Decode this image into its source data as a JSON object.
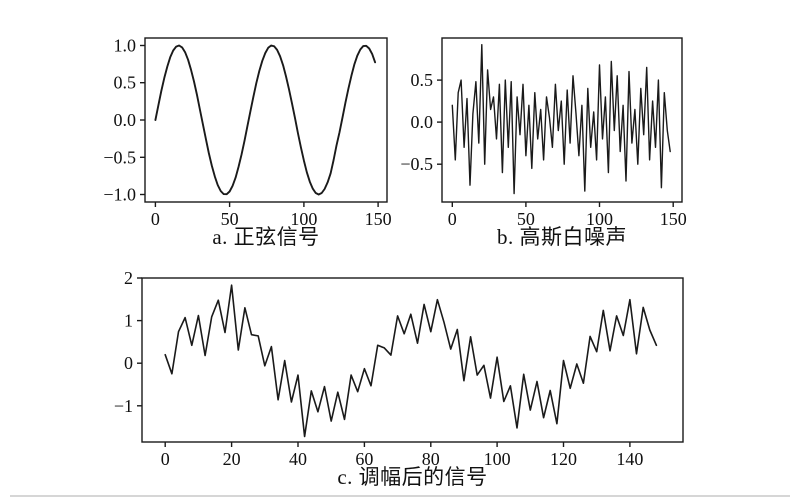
{
  "figure": {
    "background": "#ffffff",
    "line_color": "#1a1a1a",
    "axis_color": "#1a1a1a",
    "label_color": "#111111",
    "divider_color": "#d6d6d6"
  },
  "chart_data": [
    {
      "type": "line",
      "title": "a. 正弦信号",
      "xlabel": "",
      "ylabel": "",
      "x0": 0,
      "dx": 2,
      "xlim": [
        -7,
        156
      ],
      "ylim": [
        -1.1,
        1.1
      ],
      "grid": false,
      "legend": "none",
      "xticks": {
        "values": [
          0,
          50,
          100,
          150
        ],
        "labels": [
          "0",
          "50",
          "100",
          "150"
        ]
      },
      "yticks": {
        "values": [
          1.0,
          0.5,
          0.0,
          -0.5,
          -1.0
        ],
        "labels": [
          "1.0",
          "0.5",
          "0.0",
          "−0.5",
          "−1.0"
        ]
      },
      "values": [
        0,
        0.199,
        0.389,
        0.565,
        0.717,
        0.841,
        0.932,
        0.985,
        1,
        0.974,
        0.909,
        0.808,
        0.675,
        0.516,
        0.335,
        0.141,
        -0.058,
        -0.256,
        -0.443,
        -0.612,
        -0.757,
        -0.872,
        -0.952,
        -0.994,
        -0.996,
        -0.959,
        -0.883,
        -0.773,
        -0.631,
        -0.465,
        -0.279,
        -0.083,
        0.117,
        0.312,
        0.494,
        0.657,
        0.794,
        0.899,
        0.968,
        0.999,
        0.989,
        0.94,
        0.855,
        0.734,
        0.585,
        0.412,
        0.223,
        0.025,
        -0.174,
        -0.366,
        -0.544,
        -0.7,
        -0.828,
        -0.922,
        -0.979,
        -1,
        -0.979,
        -0.925,
        -0.837,
        -0.716,
        -0.537,
        -0.341,
        -0.165,
        0.034,
        0.231,
        0.42,
        0.593,
        0.743,
        0.863,
        0.946,
        0.991,
        0.995,
        0.959,
        0.884,
        0.774
      ]
    },
    {
      "type": "line",
      "title": "b. 高斯白噪声",
      "xlabel": "",
      "ylabel": "",
      "x0": 0,
      "dx": 2,
      "xlim": [
        -7,
        156
      ],
      "ylim": [
        -0.95,
        1.0
      ],
      "grid": false,
      "legend": "none",
      "xticks": {
        "values": [
          0,
          50,
          100,
          150
        ],
        "labels": [
          "0",
          "50",
          "100",
          "150"
        ]
      },
      "yticks": {
        "values": [
          0.5,
          0.0,
          -0.5
        ],
        "labels": [
          "0.5",
          "0.0",
          "−0.5"
        ]
      },
      "values": [
        0.2,
        -0.45,
        0.35,
        0.5,
        -0.3,
        0.28,
        -0.75,
        0.1,
        0.48,
        -0.25,
        0.92,
        -0.5,
        0.62,
        0.15,
        0.3,
        -0.2,
        0.45,
        -0.6,
        0.5,
        -0.3,
        0.48,
        -0.85,
        0.3,
        -0.15,
        0.45,
        -0.4,
        0.2,
        -0.55,
        0.35,
        -0.2,
        0.15,
        -0.45,
        0.3,
        0.05,
        -0.3,
        0.45,
        -0.1,
        0.25,
        -0.5,
        0.38,
        -0.25,
        0.55,
        0.1,
        -0.4,
        0.2,
        -0.82,
        0.4,
        -0.3,
        0.12,
        -0.45,
        0.68,
        -0.2,
        0.3,
        -0.6,
        0.72,
        -0.1,
        0.55,
        -0.35,
        0.2,
        -0.7,
        0.6,
        -0.25,
        0.15,
        -0.5,
        0.4,
        -0.15,
        0.65,
        -0.45,
        0.25,
        -0.3,
        0.5,
        -0.78,
        0.35,
        -0.1,
        -0.35
      ]
    },
    {
      "type": "line",
      "title": "c. 调幅后的信号",
      "xlabel": "",
      "ylabel": "",
      "x0": 0,
      "dx": 2,
      "xlim": [
        -7,
        156
      ],
      "ylim": [
        -1.85,
        2.0
      ],
      "grid": false,
      "legend": "none",
      "xticks": {
        "values": [
          0,
          20,
          40,
          60,
          80,
          100,
          120,
          140
        ],
        "labels": [
          "0",
          "20",
          "40",
          "60",
          "80",
          "100",
          "120",
          "140"
        ]
      },
      "yticks": {
        "values": [
          2,
          1,
          0,
          -1
        ],
        "labels": [
          "2",
          "1",
          "0",
          "−1"
        ]
      },
      "values": [
        0.2,
        -0.25,
        0.74,
        1.07,
        0.42,
        1.12,
        0.18,
        1.09,
        1.48,
        0.72,
        1.83,
        0.31,
        1.3,
        0.67,
        0.64,
        -0.06,
        0.39,
        -0.86,
        0.06,
        -0.91,
        -0.28,
        -1.72,
        -0.65,
        -1.14,
        -0.55,
        -1.36,
        -0.68,
        -1.32,
        -0.28,
        -0.67,
        -0.13,
        -0.53,
        0.42,
        0.36,
        0.19,
        1.11,
        0.69,
        1.15,
        0.47,
        1.38,
        0.74,
        1.49,
        0.96,
        0.33,
        0.79,
        -0.41,
        0.62,
        -0.28,
        -0.05,
        -0.82,
        0.14,
        -0.9,
        -0.53,
        -1.52,
        -0.26,
        -1.1,
        -0.43,
        -1.28,
        -0.64,
        -1.42,
        0.06,
        -0.59,
        -0.02,
        -0.47,
        0.63,
        0.27,
        1.24,
        0.29,
        1.11,
        0.65,
        1.49,
        0.22,
        1.31,
        0.78,
        0.42
      ]
    }
  ]
}
